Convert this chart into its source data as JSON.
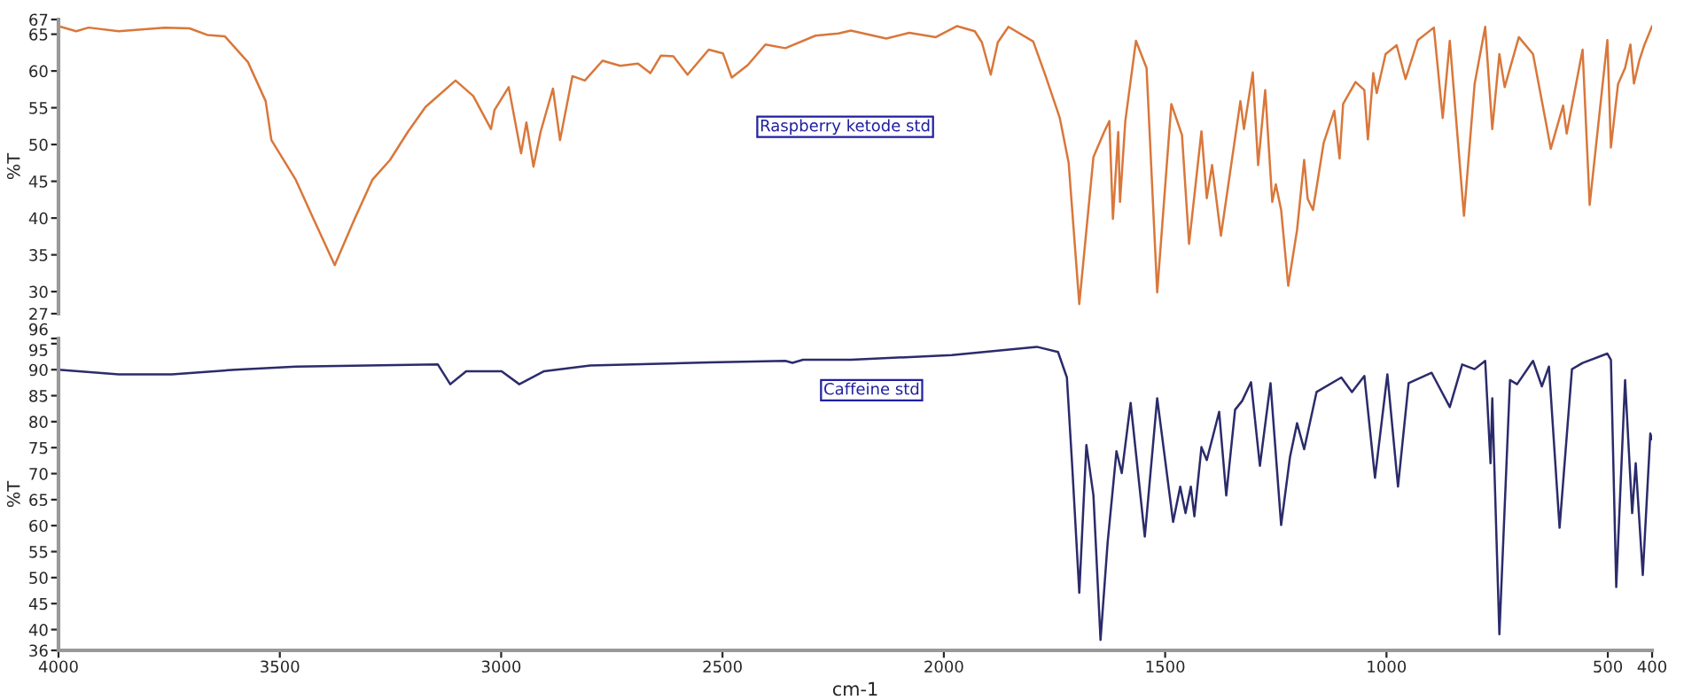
{
  "chart_data": [
    {
      "type": "line",
      "ylabel": "%T",
      "xlim": [
        4000,
        400
      ],
      "xticks": [
        4000,
        3500,
        3000,
        2500,
        2000,
        1500,
        1000,
        500,
        400
      ],
      "ylim": [
        27,
        67
      ],
      "yticks": [
        27,
        30,
        35,
        40,
        45,
        50,
        55,
        60,
        65,
        67
      ],
      "tick_labels": "y",
      "grid": false,
      "legend": false,
      "series": [
        {
          "name": "Raspberry ketode std",
          "color": "#d9773a",
          "x": [
            4000,
            3960,
            3932,
            3864,
            3760,
            3704,
            3664,
            3624,
            3572,
            3532,
            3519,
            3464,
            3424,
            3376,
            3331,
            3291,
            3251,
            3211,
            3171,
            3103,
            3063,
            3023,
            3015,
            2983,
            2955,
            2943,
            2927,
            2911,
            2883,
            2867,
            2839,
            2811,
            2771,
            2731,
            2691,
            2663,
            2639,
            2611,
            2579,
            2531,
            2499,
            2479,
            2443,
            2403,
            2358,
            2290,
            2238,
            2210,
            2130,
            2078,
            2018,
            1970,
            1930,
            1914,
            1894,
            1878,
            1854,
            1798,
            1770,
            1738,
            1718,
            1694,
            1662,
            1638,
            1626,
            1618,
            1606,
            1602,
            1590,
            1566,
            1542,
            1518,
            1486,
            1462,
            1446,
            1418,
            1406,
            1394,
            1374,
            1330,
            1322,
            1302,
            1290,
            1274,
            1258,
            1250,
            1238,
            1222,
            1202,
            1186,
            1178,
            1166,
            1142,
            1118,
            1106,
            1098,
            1070,
            1050,
            1042,
            1030,
            1022,
            1002,
            977,
            957,
            929,
            893,
            873,
            857,
            825,
            801,
            777,
            761,
            745,
            733,
            701,
            669,
            637,
            629,
            601,
            593,
            557,
            541,
            501,
            493,
            477,
            461,
            449,
            441,
            429,
            417,
            400
          ],
          "values": [
            66.1,
            65.4,
            65.9,
            65.4,
            65.9,
            65.8,
            64.9,
            64.7,
            61.2,
            55.9,
            50.6,
            45.2,
            39.9,
            33.6,
            39.9,
            45.2,
            47.9,
            51.7,
            55.1,
            58.7,
            56.6,
            52.1,
            54.7,
            57.8,
            48.8,
            53.0,
            47.0,
            51.7,
            57.6,
            50.6,
            59.3,
            58.7,
            61.4,
            60.7,
            61.0,
            59.7,
            62.1,
            62.0,
            59.5,
            62.9,
            62.4,
            59.1,
            60.8,
            63.6,
            63.1,
            64.8,
            65.1,
            65.5,
            64.4,
            65.2,
            64.6,
            66.1,
            65.4,
            63.9,
            59.5,
            63.9,
            66.0,
            64.0,
            59.3,
            53.6,
            47.5,
            28.3,
            48.3,
            51.7,
            53.2,
            39.9,
            51.7,
            42.2,
            53.2,
            64.1,
            60.4,
            29.9,
            55.5,
            51.3,
            36.5,
            51.8,
            42.7,
            47.2,
            37.6,
            55.9,
            52.1,
            59.8,
            47.2,
            57.4,
            42.2,
            44.6,
            41.1,
            30.8,
            38.4,
            47.9,
            42.6,
            41.1,
            50.2,
            54.6,
            48.1,
            55.5,
            58.5,
            57.4,
            50.7,
            59.7,
            57.0,
            62.3,
            63.5,
            58.9,
            64.2,
            65.9,
            53.6,
            64.1,
            40.3,
            58.2,
            66.0,
            52.1,
            62.3,
            57.8,
            64.6,
            62.3,
            52.1,
            49.4,
            55.3,
            51.5,
            62.9,
            41.8,
            64.2,
            49.6,
            58.2,
            60.4,
            63.6,
            58.3,
            61.4,
            63.6,
            66.1
          ]
        }
      ]
    },
    {
      "type": "line",
      "ylabel": "%T",
      "xlabel": "cm-1",
      "xlim": [
        4000,
        400
      ],
      "xticks": [
        4000,
        3500,
        3000,
        2500,
        2000,
        1500,
        1000,
        500,
        400
      ],
      "ylim": [
        36,
        96
      ],
      "yticks": [
        36,
        40,
        45,
        50,
        55,
        60,
        65,
        70,
        75,
        80,
        85,
        90,
        95,
        96
      ],
      "grid": false,
      "legend": false,
      "series": [
        {
          "name": "Caffeine std",
          "color": "#2b2b6b",
          "x": [
            4000,
            3864,
            3744,
            3600,
            3464,
            3143,
            3115,
            3079,
            2999,
            2959,
            2903,
            2799,
            2663,
            2531,
            2358,
            2342,
            2318,
            2210,
            1982,
            1790,
            1742,
            1722,
            1710,
            1694,
            1678,
            1662,
            1646,
            1630,
            1610,
            1598,
            1578,
            1546,
            1518,
            1482,
            1466,
            1454,
            1442,
            1434,
            1418,
            1406,
            1378,
            1362,
            1342,
            1326,
            1306,
            1286,
            1262,
            1238,
            1218,
            1202,
            1186,
            1158,
            1102,
            1078,
            1050,
            1026,
            998,
            974,
            950,
            898,
            857,
            829,
            801,
            777,
            765,
            761,
            745,
            721,
            705,
            669,
            649,
            633,
            609,
            581,
            557,
            501,
            493,
            481,
            461,
            445,
            437,
            421,
            404,
            400
          ],
          "values": [
            90.0,
            89.1,
            89.1,
            90.0,
            90.6,
            91.0,
            87.2,
            89.7,
            89.7,
            87.2,
            89.7,
            90.8,
            91.1,
            91.4,
            91.7,
            91.3,
            91.9,
            91.9,
            92.8,
            94.4,
            93.4,
            88.5,
            71.5,
            47.1,
            75.5,
            65.8,
            38.0,
            56.7,
            74.3,
            70.1,
            83.6,
            57.9,
            84.5,
            60.7,
            67.5,
            62.4,
            67.5,
            61.8,
            75.1,
            72.6,
            81.9,
            65.8,
            82.3,
            84.0,
            87.6,
            71.5,
            87.4,
            60.1,
            73.2,
            79.7,
            74.7,
            85.7,
            88.5,
            85.7,
            88.8,
            69.2,
            89.1,
            67.5,
            87.4,
            89.4,
            82.8,
            91.0,
            90.1,
            91.7,
            72.0,
            84.5,
            39.1,
            88.0,
            87.2,
            91.7,
            86.8,
            90.6,
            59.6,
            90.1,
            91.3,
            93.1,
            91.9,
            48.2,
            88.0,
            62.4,
            72.0,
            50.5,
            77.7,
            76.6
          ]
        }
      ]
    }
  ]
}
